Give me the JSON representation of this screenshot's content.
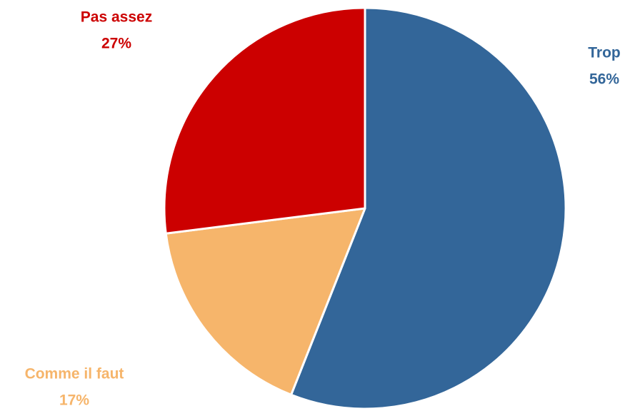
{
  "chart_data": {
    "type": "pie",
    "categories": [
      "Trop",
      "Comme il faut",
      "Pas assez"
    ],
    "values": [
      56,
      17,
      27
    ],
    "value_labels": [
      "56%",
      "17%",
      "27%"
    ],
    "colors": [
      "#336699",
      "#f6b56b",
      "#cc0000"
    ]
  }
}
